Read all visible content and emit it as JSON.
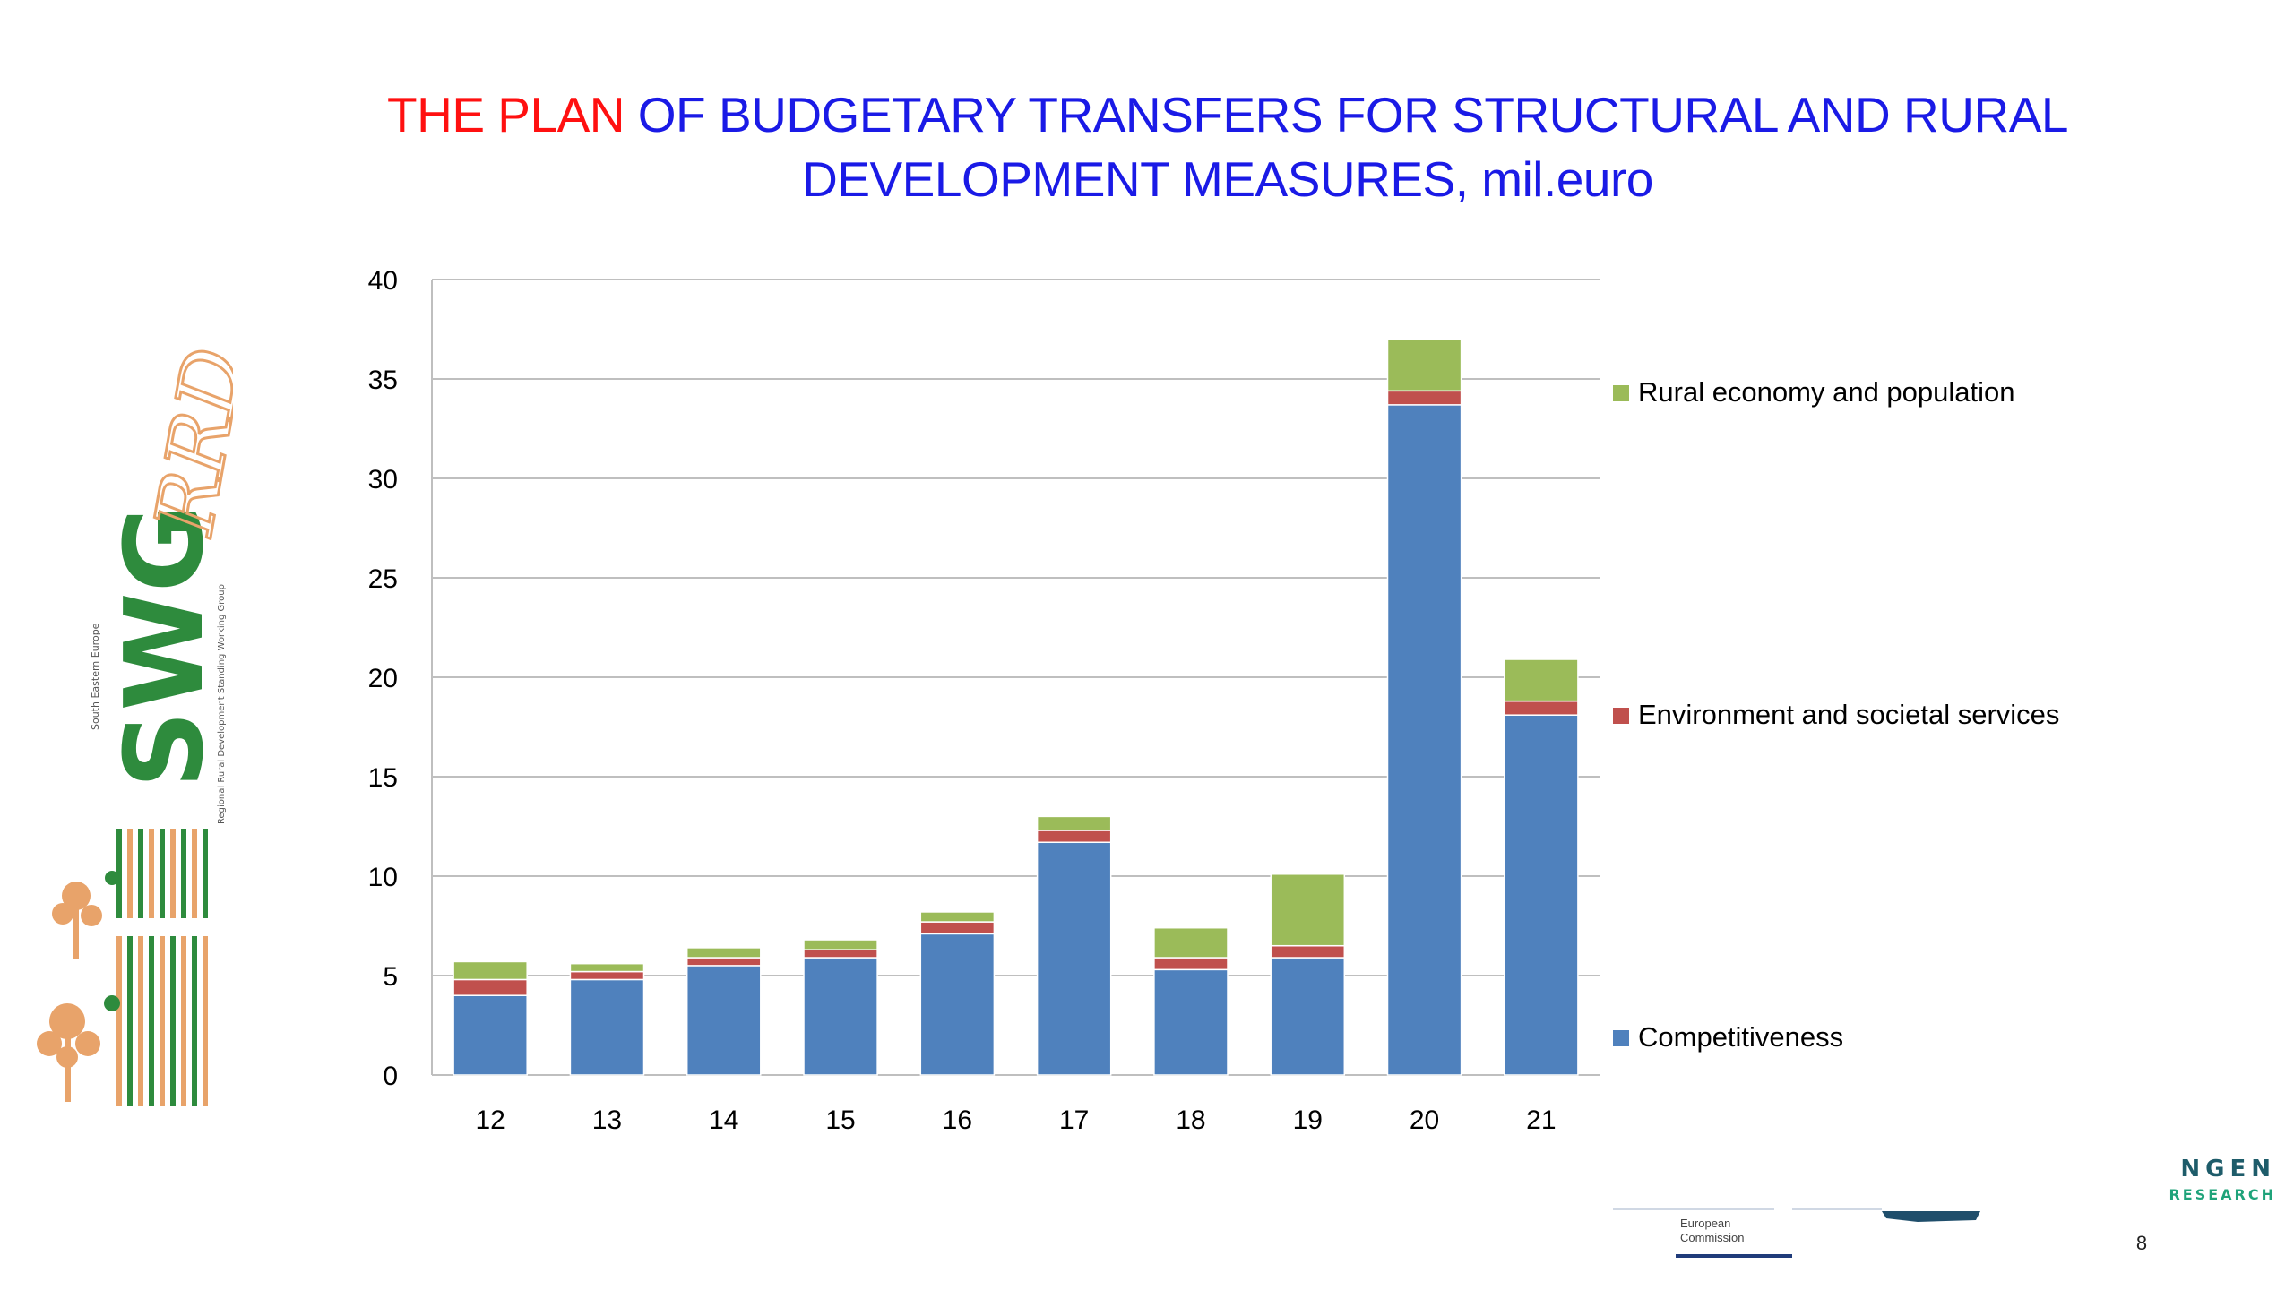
{
  "slide": {
    "title_part1": "THE PLAN",
    "title_part2": "OF BUDGETARY TRANSFERS FOR STRUCTURAL AND RURAL",
    "title_line2": "DEVELOPMENT MEASURES, mil.euro",
    "page_number": "8",
    "colors": {
      "title_red": "#ff1010",
      "title_blue": "#1a1ae6"
    }
  },
  "logo": {
    "letters": "SWG",
    "script": "RRD",
    "side_text_1": "South Eastern Europe",
    "side_text_2": "Regional Rural Development Standing Working Group"
  },
  "footer": {
    "ec_line1": "European",
    "ec_line2": "Commission",
    "ngen_top": "NGEN",
    "ngen_bottom": "RESEARCH"
  },
  "chart_data": {
    "type": "bar",
    "stacked": true,
    "categories": [
      "12",
      "13",
      "14",
      "15",
      "16",
      "17",
      "18",
      "19",
      "20",
      "21"
    ],
    "series": [
      {
        "name": "Competitiveness",
        "color": "#4f81bd",
        "values": [
          4.0,
          4.8,
          5.5,
          5.9,
          7.1,
          11.7,
          5.3,
          5.9,
          33.7,
          18.1
        ]
      },
      {
        "name": "Environment and societal services",
        "color": "#c0504d",
        "values": [
          0.8,
          0.4,
          0.4,
          0.4,
          0.6,
          0.6,
          0.6,
          0.6,
          0.7,
          0.7
        ]
      },
      {
        "name": "Rural economy and population",
        "color": "#9bbb59",
        "values": [
          0.9,
          0.4,
          0.5,
          0.5,
          0.5,
          0.7,
          1.5,
          3.6,
          2.6,
          2.1
        ]
      }
    ],
    "y_ticks": [
      "0",
      "5",
      "10",
      "15",
      "20",
      "25",
      "30",
      "35",
      "40"
    ],
    "ylim": [
      0,
      40
    ],
    "grid": true,
    "legend_position": "right"
  }
}
